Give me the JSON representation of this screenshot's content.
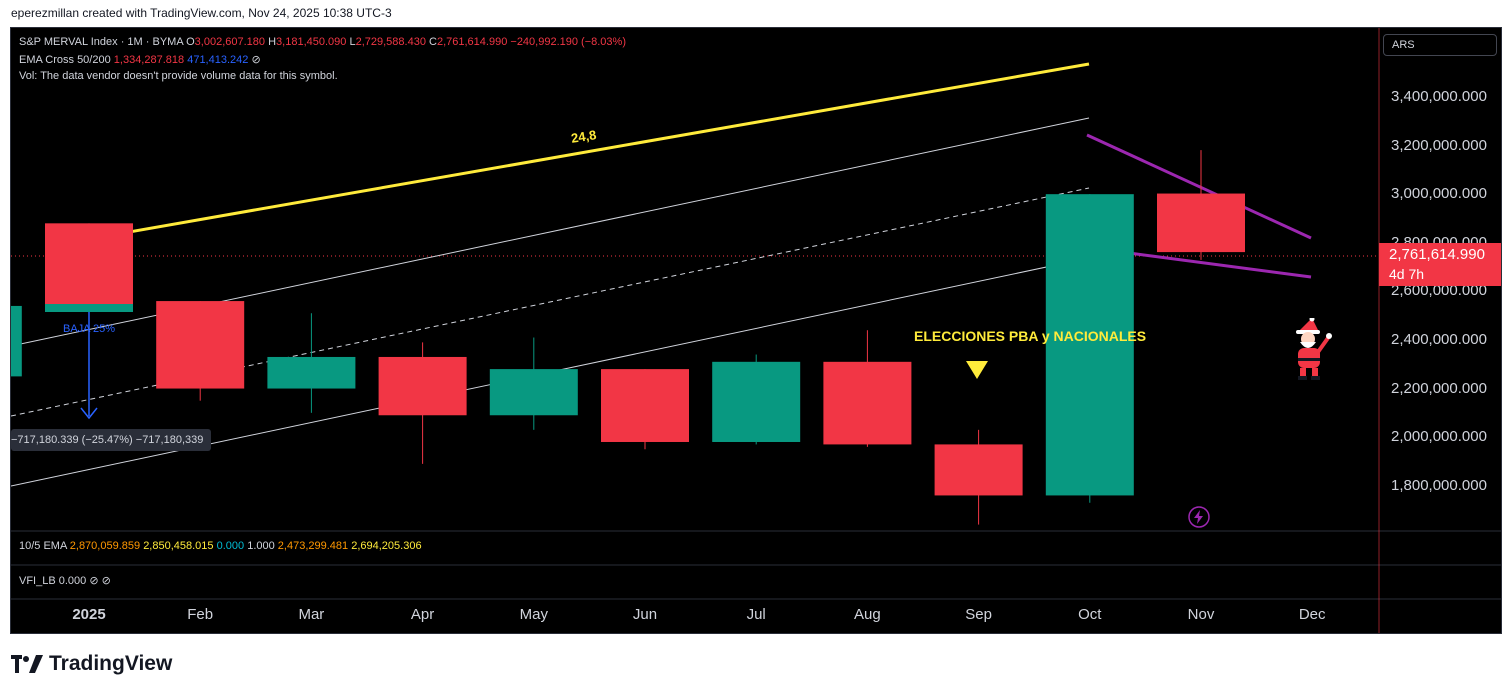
{
  "caption": "eperezmillan created with TradingView.com, Nov 24, 2025 10:38 UTC-3",
  "legend": {
    "symbol": "S&P MERVAL Index · 1M · BYMA",
    "o_label": "O",
    "o_value": "3,002,607.180",
    "h_label": "H",
    "h_value": "3,181,450.090",
    "l_label": "L",
    "l_value": "2,729,588.430",
    "c_label": "C",
    "c_value": "2,761,614.990",
    "change": "−240,992.190 (−8.03%)",
    "ema_name": "EMA Cross 50/200",
    "ema_v1": "1,334,287.818",
    "ema_v2": "471,413.242",
    "ema_icon": "⊘",
    "vol_text": "Vol: The data vendor doesn't provide volume data for this symbol."
  },
  "pane2": {
    "name": "10/5 EMA",
    "v1": "2,870,059.859",
    "v2": "2,850,458.015",
    "v3": "0.000",
    "v4": "1.000",
    "v5": "2,473,299.481",
    "v6": "2,694,205.306"
  },
  "pane3": {
    "name": "VFI_LB",
    "v1": "0.000",
    "i1": "⊘",
    "i2": "⊘"
  },
  "currency": "ARS",
  "price_axis": [
    "3,400,000.000",
    "3,200,000.000",
    "3,000,000.000",
    "2,800,000.000",
    "2,600,000.000",
    "2,400,000.000",
    "2,200,000.000",
    "2,000,000.000",
    "1,800,000.000"
  ],
  "last_price": "2,761,614.990",
  "time_left": "4d 7h",
  "months": [
    "2025",
    "Feb",
    "Mar",
    "Apr",
    "May",
    "Jun",
    "Jul",
    "Aug",
    "Sep",
    "Oct",
    "Nov",
    "Dec"
  ],
  "annotations": {
    "channel": "24,8",
    "elecciones": "ELECCIONES PBA y NACIONALES",
    "baja": "BAJA 25%",
    "measure": "−717,180.339 (−25.47%) −717,180,339"
  },
  "logo": "TradingView",
  "colors": {
    "up": "#089981",
    "down": "#f23645",
    "channel": "#ffeb3b",
    "wedge": "#9c27b0",
    "measure": "#2962ff"
  },
  "chart_data": {
    "type": "candlestick",
    "x": [
      "Dec 2024",
      "Jan 2025",
      "Feb",
      "Mar",
      "Apr",
      "May",
      "Jun",
      "Jul",
      "Aug",
      "Sep",
      "Oct",
      "Nov"
    ],
    "ohlc": [
      [
        2250000,
        2540000,
        2250000,
        2540000
      ],
      [
        2880000,
        2880000,
        2540000,
        2540000
      ],
      [
        2560000,
        2560000,
        2150000,
        2200000
      ],
      [
        2200000,
        2510000,
        2100000,
        2330000
      ],
      [
        2330000,
        2390000,
        1890000,
        2090000
      ],
      [
        2090000,
        2410000,
        2030000,
        2280000
      ],
      [
        2280000,
        2280000,
        1950000,
        1980000
      ],
      [
        1980000,
        2340000,
        1970000,
        2310000
      ],
      [
        2310000,
        2440000,
        1960000,
        1970000
      ],
      [
        1970000,
        2030000,
        1640000,
        1760000
      ],
      [
        1760000,
        3000000,
        1730000,
        3000000
      ],
      [
        3002607.18,
        3181450.09,
        2729588.43,
        2761614.99
      ]
    ],
    "ylim": [
      1640000,
      3560000
    ]
  }
}
